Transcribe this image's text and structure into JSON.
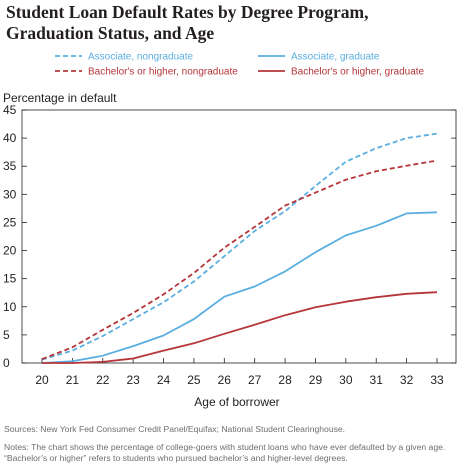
{
  "chart_data": {
    "type": "line",
    "title": "Student Loan Default Rates by Degree Program, Graduation Status, and Age",
    "title_lines": [
      "Student Loan Default Rates by Degree Program,",
      "Graduation Status, and Age"
    ],
    "ylabel": "Percentage in default",
    "xlabel": "Age of borrower",
    "x": [
      20,
      21,
      22,
      23,
      24,
      25,
      26,
      27,
      28,
      29,
      30,
      31,
      32,
      33
    ],
    "xticks": [
      "20",
      "21",
      "22",
      "23",
      "24",
      "25",
      "26",
      "27",
      "28",
      "29",
      "30",
      "31",
      "32",
      "33"
    ],
    "yticks": [
      "0",
      "5",
      "10",
      "15",
      "20",
      "25",
      "30",
      "35",
      "40",
      "45"
    ],
    "xlim": [
      20,
      33
    ],
    "ylim": [
      0,
      45
    ],
    "grid": false,
    "legend_position": "top",
    "series": [
      {
        "name": "Associate, nongraduate",
        "color": "#5aaee0",
        "dash": true,
        "values": [
          0.6,
          2.2,
          4.8,
          7.8,
          10.8,
          14.5,
          19.0,
          23.5,
          27.0,
          31.5,
          35.8,
          38.2,
          40.0,
          40.8
        ]
      },
      {
        "name": "Bachelor's or higher, nongraduate",
        "color": "#b5353a",
        "dash": true,
        "values": [
          0.7,
          2.8,
          5.9,
          8.9,
          12.2,
          16.0,
          20.5,
          24.2,
          28.0,
          30.3,
          32.6,
          34.1,
          35.1,
          36.0
        ]
      },
      {
        "name": "Associate, graduate",
        "color": "#5aaee0",
        "dash": false,
        "values": [
          0.0,
          0.3,
          1.3,
          3.0,
          4.9,
          7.8,
          11.8,
          13.6,
          16.3,
          19.7,
          22.7,
          24.4,
          26.6,
          26.8
        ]
      },
      {
        "name": "Bachelor's or higher, graduate",
        "color": "#b5353a",
        "dash": false,
        "values": [
          0.0,
          0.0,
          0.2,
          0.8,
          2.2,
          3.5,
          5.2,
          6.8,
          8.5,
          9.9,
          10.9,
          11.7,
          12.3,
          12.6
        ]
      }
    ]
  },
  "footer": {
    "source": "Sources: New York Fed Consumer Credit Panel/Equifax; National Student Clearinghouse.",
    "notes": "Notes: The chart shows the percentage of college-goers with student loans who have ever defaulted by a given age. “Bachelor’s or higher” refers to students who pursued bachelor’s and higher-level degrees."
  }
}
